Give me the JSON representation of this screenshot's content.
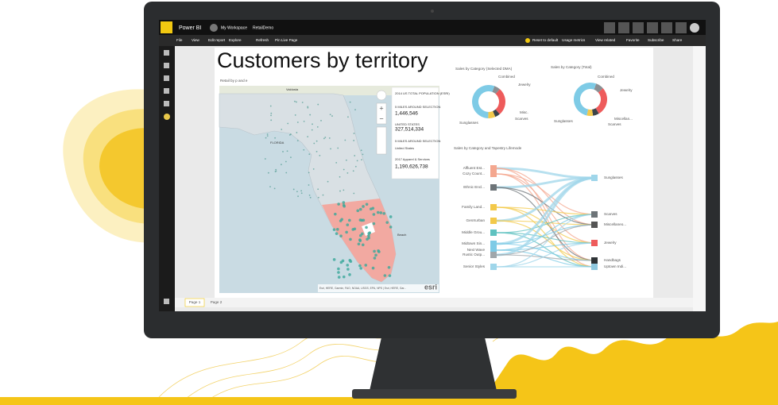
{
  "app": {
    "name": "Power BI",
    "workspace": "My Workspace",
    "report": "RetailDemo"
  },
  "toolbar": {
    "left": [
      "File",
      "View",
      "Edit report",
      "Explore",
      "Refresh",
      "Pin Live Page"
    ],
    "right": [
      "Reset to default",
      "Usage metrics",
      "View related",
      "Favorite",
      "Subscribe",
      "Share"
    ]
  },
  "page": {
    "title": "Customers by territory",
    "tabs": [
      "Page 1",
      "Page 2"
    ]
  },
  "map": {
    "subtitle": "Retail by p and e",
    "labels": [
      "Valdosta",
      "FLORIDA",
      "Beach"
    ],
    "info": [
      "2014 US TOTAL POPULATION (ESRI)",
      "5 MILES AROUND SELECTION",
      "1,446,546",
      "UNITED STATES",
      "327,514,334",
      "5 MILES AROUND SELECTION",
      "United States",
      "2017 Apparel & Services",
      "1,190,626,738"
    ],
    "attribution": "Esri, HERE, Garmin, FAO, NOAA, USGS, EPA, NPS | Esri, HERE, Gar...",
    "logo": "esri"
  },
  "donuts": [
    {
      "title": "Sales by Category (Selected DMA)",
      "segments": [
        {
          "label": "Combined",
          "value": 6,
          "color": "#8a8f93"
        },
        {
          "label": "Jewelry",
          "value": 27,
          "color": "#ee5b5b"
        },
        {
          "label": "Misc.",
          "value": 5,
          "color": "#3d4448"
        },
        {
          "label": "Scarves",
          "value": 7,
          "color": "#f3c94a"
        },
        {
          "label": "Sunglasses",
          "value": 55,
          "color": "#7ecbe6"
        }
      ]
    },
    {
      "title": "Sales by Category (Total)",
      "segments": [
        {
          "label": "Combined",
          "value": 8,
          "color": "#8a8f93"
        },
        {
          "label": "Jewelry",
          "value": 28,
          "color": "#ee5b5b"
        },
        {
          "label": "Miscellan...",
          "value": 6,
          "color": "#3d4448"
        },
        {
          "label": "Scarves",
          "value": 6,
          "color": "#f3c94a"
        },
        {
          "label": "Sunglasses",
          "value": 52,
          "color": "#7ecbe6"
        }
      ]
    }
  ],
  "chord": {
    "title": "Sales by Category and Tapestry Lifemode",
    "left": [
      "Affluent Est...",
      "Cozy Count...",
      "Ethnic Encl...",
      "Family Land...",
      "GenXurban",
      "Middle Grou...",
      "Midtown Sin...",
      "Next Wave",
      "Rustic Outp...",
      "Senior Styles"
    ],
    "right": [
      "Sunglasses",
      "Scarves",
      "Miscellaneo...",
      "Jewelry",
      "Handbags",
      "Uptown Indi..."
    ]
  }
}
